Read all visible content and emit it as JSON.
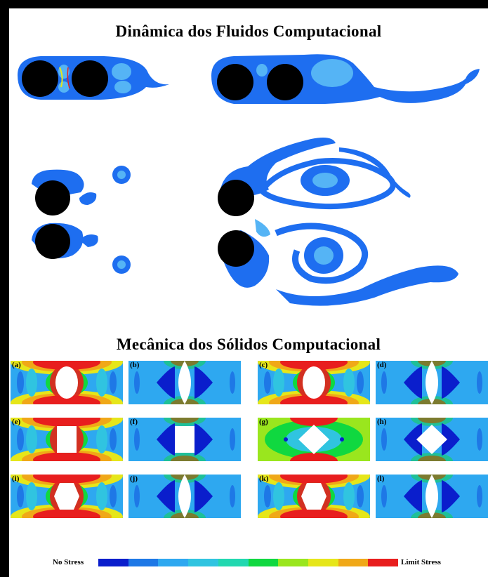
{
  "cfd": {
    "title": "Dinâmica dos Fluidos Computacional"
  },
  "csm": {
    "title": "Mecânica dos Sólidos Computacional",
    "panels": [
      {
        "label": "(a)",
        "variant": "hot",
        "hole": "ellipse"
      },
      {
        "label": "(b)",
        "variant": "cool",
        "hole": "lens"
      },
      {
        "label": "(c)",
        "variant": "hot",
        "hole": "ellipse"
      },
      {
        "label": "(d)",
        "variant": "cool",
        "hole": "lens"
      },
      {
        "label": "(e)",
        "variant": "hot",
        "hole": "rect"
      },
      {
        "label": "(f)",
        "variant": "cool",
        "hole": "rect"
      },
      {
        "label": "(g)",
        "variant": "green",
        "hole": "diamond"
      },
      {
        "label": "(h)",
        "variant": "cool",
        "hole": "diamond"
      },
      {
        "label": "(i)",
        "variant": "hot",
        "hole": "hex"
      },
      {
        "label": "(j)",
        "variant": "cool",
        "hole": "lens"
      },
      {
        "label": "(k)",
        "variant": "hot",
        "hole": "hex"
      },
      {
        "label": "(l)",
        "variant": "cool",
        "hole": "lens"
      }
    ]
  },
  "legend": {
    "min_label": "No Stress",
    "max_label": "Limit Stress",
    "colors": [
      "#0a1ecc",
      "#1e78e6",
      "#2ea8f0",
      "#30c4e0",
      "#22d8b0",
      "#10d840",
      "#9ae61e",
      "#e6e61a",
      "#f0a818",
      "#e81e1e"
    ]
  },
  "colors": {
    "cylinder": "#000000",
    "flow_base": "#1e6ef0",
    "flow_light": "#55b4f5"
  }
}
